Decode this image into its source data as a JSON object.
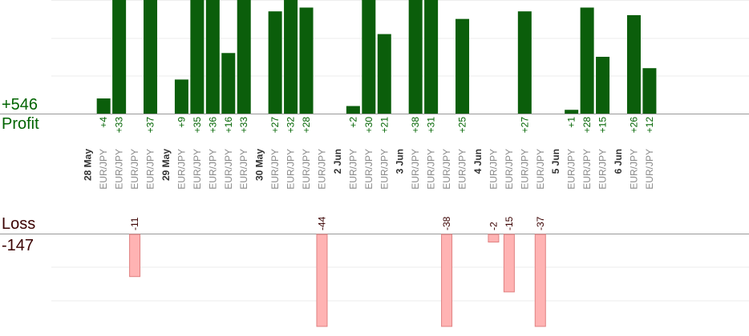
{
  "summary": {
    "profit_total": "+546",
    "profit_label": "Profit",
    "loss_label": "Loss",
    "loss_total": "-147"
  },
  "colors": {
    "profit_bar": "#0b5e0b",
    "profit_text": "#006400",
    "loss_bar": "#ffb3b3",
    "loss_bar_border": "#e08080",
    "loss_text": "#3a0000",
    "category_text": "#8a8a8a",
    "date_text": "#333333",
    "gridline": "#eeeeee",
    "baseline": "#999999"
  },
  "chart_data": {
    "type": "bar",
    "profit_scale_max": 30,
    "loss_scale_max": 24,
    "days": [
      {
        "date": "28 May",
        "trades": [
          {
            "symbol": "EUR/JPY",
            "result": 4
          },
          {
            "symbol": "EUR/JPY",
            "result": 33
          },
          {
            "symbol": "EUR/JPY",
            "result": -11
          },
          {
            "symbol": "EUR/JPY",
            "result": 37
          }
        ]
      },
      {
        "date": "29 May",
        "trades": [
          {
            "symbol": "EUR/JPY",
            "result": 9
          },
          {
            "symbol": "EUR/JPY",
            "result": 35
          },
          {
            "symbol": "EUR/JPY",
            "result": 36
          },
          {
            "symbol": "EUR/JPY",
            "result": 16
          },
          {
            "symbol": "EUR/JPY",
            "result": 33
          }
        ]
      },
      {
        "date": "30 May",
        "trades": [
          {
            "symbol": "EUR/JPY",
            "result": 27
          },
          {
            "symbol": "EUR/JPY",
            "result": 32
          },
          {
            "symbol": "EUR/JPY",
            "result": 28
          },
          {
            "symbol": "EUR/JPY",
            "result": -44
          }
        ]
      },
      {
        "date": "2 Jun",
        "trades": [
          {
            "symbol": "EUR/JPY",
            "result": 2
          },
          {
            "symbol": "EUR/JPY",
            "result": 30
          },
          {
            "symbol": "EUR/JPY",
            "result": 21
          }
        ]
      },
      {
        "date": "3 Jun",
        "trades": [
          {
            "symbol": "EUR/JPY",
            "result": 38
          },
          {
            "symbol": "EUR/JPY",
            "result": 31
          },
          {
            "symbol": "EUR/JPY",
            "result": -38
          },
          {
            "symbol": "EUR/JPY",
            "result": 25
          }
        ]
      },
      {
        "date": "4 Jun",
        "trades": [
          {
            "symbol": "EUR/JPY",
            "result": -2
          },
          {
            "symbol": "EUR/JPY",
            "result": -15
          },
          {
            "symbol": "EUR/JPY",
            "result": 27
          },
          {
            "symbol": "EUR/JPY",
            "result": -37
          }
        ]
      },
      {
        "date": "5 Jun",
        "trades": [
          {
            "symbol": "EUR/JPY",
            "result": 1
          },
          {
            "symbol": "EUR/JPY",
            "result": 28
          },
          {
            "symbol": "EUR/JPY",
            "result": 15
          }
        ]
      },
      {
        "date": "6 Jun",
        "trades": [
          {
            "symbol": "EUR/JPY",
            "result": 26
          },
          {
            "symbol": "EUR/JPY",
            "result": 12
          }
        ]
      }
    ]
  }
}
